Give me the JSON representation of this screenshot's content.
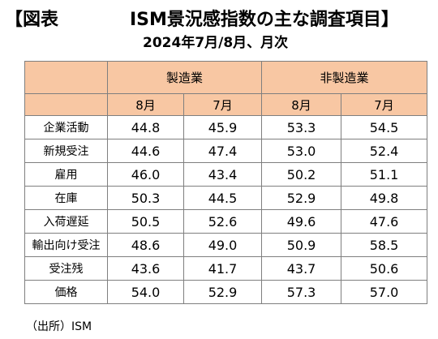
{
  "figure_label": "【図表",
  "title": "ISM景況感指数の主な調査項目】",
  "subtitle": "2024年7月/8月、月次",
  "table": {
    "groups": [
      "製造業",
      "非製造業"
    ],
    "months": [
      "8月",
      "7月",
      "8月",
      "7月"
    ],
    "rows": [
      {
        "item": "企業活動",
        "values": [
          "44.8",
          "45.9",
          "53.3",
          "54.5"
        ]
      },
      {
        "item": "新規受注",
        "values": [
          "44.6",
          "47.4",
          "53.0",
          "52.4"
        ]
      },
      {
        "item": "雇用",
        "values": [
          "46.0",
          "43.4",
          "50.2",
          "51.1"
        ]
      },
      {
        "item": "在庫",
        "values": [
          "50.3",
          "44.5",
          "52.9",
          "49.8"
        ]
      },
      {
        "item": "入荷遅延",
        "values": [
          "50.5",
          "52.6",
          "49.6",
          "47.6"
        ]
      },
      {
        "item": "輸出向け受注",
        "values": [
          "48.6",
          "49.0",
          "50.9",
          "58.5"
        ]
      },
      {
        "item": "受注残",
        "values": [
          "43.6",
          "41.7",
          "43.7",
          "50.6"
        ]
      },
      {
        "item": "価格",
        "values": [
          "54.0",
          "52.9",
          "57.3",
          "57.0"
        ]
      }
    ]
  },
  "source": "（出所）ISM",
  "colors": {
    "header_fill": "#f8c7a3",
    "border": "#7f7f7f"
  }
}
